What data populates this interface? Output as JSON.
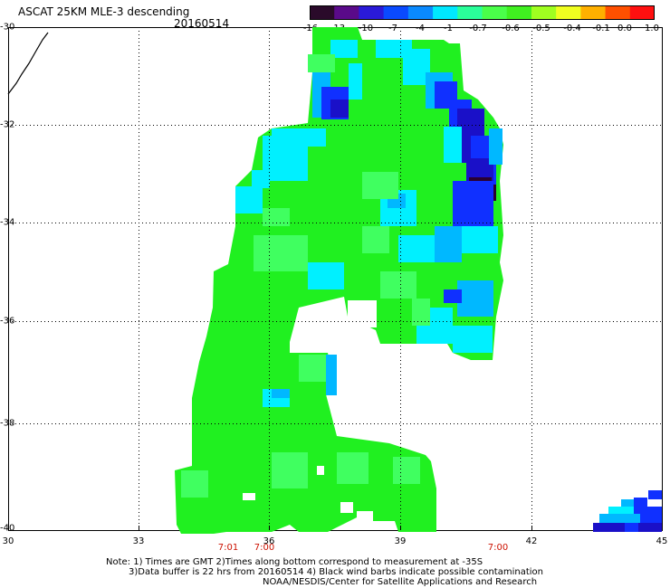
{
  "header": {
    "title": "ASCAT 25KM MLE-3 descending",
    "date": "20160514"
  },
  "colorbar": {
    "labels": [
      "-16",
      "-13",
      "-10",
      "-7",
      "-4",
      "-1",
      "-0.7",
      "-0.6",
      "-0.5",
      "-0.4",
      "-0.1",
      "0.0",
      "1.0"
    ],
    "colors": [
      "#2a0a2a",
      "#5a0a8a",
      "#2a1ad8",
      "#0a4aff",
      "#0a8aff",
      "#00e8ff",
      "#2aff9a",
      "#4aff4a",
      "#40f020",
      "#a0ff20",
      "#f0ff20",
      "#ffb000",
      "#ff5000",
      "#ff1010"
    ]
  },
  "map": {
    "lat_labels": [
      "-30",
      "-32",
      "-34",
      "-36",
      "-38",
      "-40"
    ],
    "lon_labels": [
      "30",
      "33",
      "36",
      "39",
      "42",
      "45"
    ],
    "times": [
      {
        "label": "7:01",
        "lon": 35.2
      },
      {
        "label": "7:00",
        "lon": 35.8
      },
      {
        "label": "7:00",
        "lon": 41.2
      }
    ],
    "swath_colors": {
      "green": "#20f020",
      "light_green": "#40ff60",
      "cyan": "#00f0ff",
      "light_blue": "#00b8ff",
      "blue": "#1030ff",
      "dark_blue": "#1a10c8",
      "dark_purple": "#2a0030"
    }
  },
  "notes": {
    "line1": "Note: 1) Times are GMT 2)Times along bottom correspond to measurement at -35S",
    "line2": "3)Data buffer is 22 hrs from 20160514 4) Black wind barbs indicate possible contamination",
    "credit": "NOAA/NESDIS/Center for Satellite Applications and Research"
  }
}
